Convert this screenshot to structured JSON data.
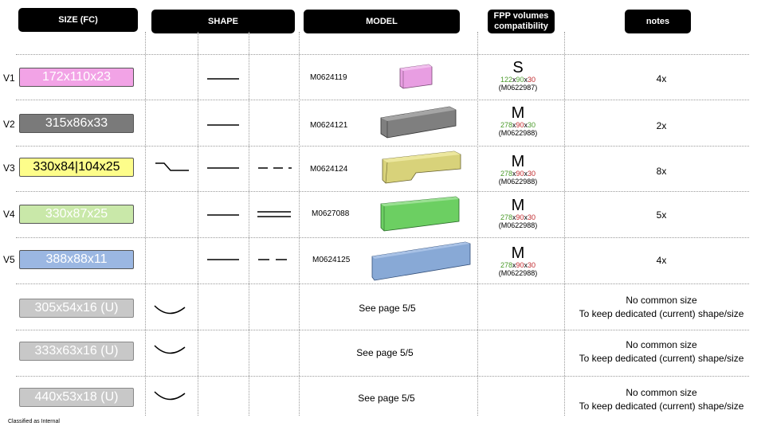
{
  "headers": {
    "size": "SIZE (FC)",
    "shape": "SHAPE",
    "model": "MODEL",
    "fpp_line1": "FPP volumes",
    "fpp_line2": "compatibility",
    "notes": "notes"
  },
  "rows": [
    {
      "label": "V1",
      "size": "172x110x23",
      "color": "#f2a3e6",
      "text_color": "#ffffff",
      "model": "M0624119",
      "fpp_size": "S",
      "fpp_a": "122",
      "fpp_b": "90",
      "fpp_c": "30",
      "fpp_ref": "(M0622987)",
      "note": "4x"
    },
    {
      "label": "V2",
      "size": "315x86x33",
      "color": "#7a7a7a",
      "text_color": "#ffffff",
      "model": "M0624121",
      "fpp_size": "M",
      "fpp_a": "278",
      "fpp_b": "90",
      "fpp_c": "30",
      "fpp_ref": "(M0622988)",
      "note": "2x"
    },
    {
      "label": "V3",
      "size": "330x84|104x25",
      "color": "#fdfd8a",
      "text_color": "#000000",
      "model": "M0624124",
      "fpp_size": "M",
      "fpp_a": "278",
      "fpp_b": "90",
      "fpp_c": "30",
      "fpp_ref": "(M0622988)",
      "note": "8x"
    },
    {
      "label": "V4",
      "size": "330x87x25",
      "color": "#c9e8a9",
      "text_color": "#ffffff",
      "model": "M0627088",
      "fpp_size": "M",
      "fpp_a": "278",
      "fpp_b": "90",
      "fpp_c": "30",
      "fpp_ref": "(M0622988)",
      "note": "5x"
    },
    {
      "label": "V5",
      "size": "388x88x11",
      "color": "#9bb7e2",
      "text_color": "#ffffff",
      "model": "M0624125",
      "fpp_size": "M",
      "fpp_a": "278",
      "fpp_b": "90",
      "fpp_c": "30",
      "fpp_ref": "(M0622988)",
      "note": "4x"
    }
  ],
  "unique_rows": [
    {
      "size": "305x54x16 (U)",
      "see": "See page 5/5",
      "note1": "No common size",
      "note2": "To keep dedicated (current) shape/size"
    },
    {
      "size": "333x63x16 (U)",
      "see": "See page 5/5",
      "note1": "No common size",
      "note2": "To keep dedicated (current) shape/size"
    },
    {
      "size": "440x53x18 (U)",
      "see": "See page 5/5",
      "note1": "No common size",
      "note2": "To keep dedicated (current) shape/size"
    }
  ],
  "unique_color": "#c8c8c8",
  "footer": "Classified as Internal"
}
